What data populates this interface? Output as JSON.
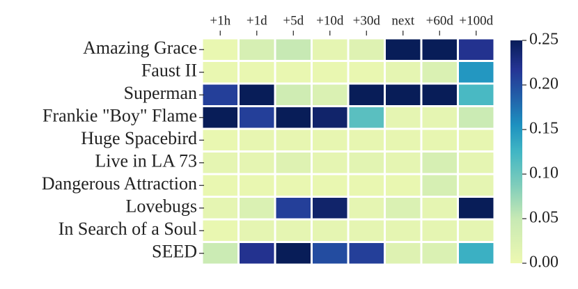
{
  "chart_data": {
    "type": "heatmap",
    "x_categories": [
      "+1h",
      "+1d",
      "+5d",
      "+10d",
      "+30d",
      "next",
      "+60d",
      "+100d"
    ],
    "y_categories": [
      "Amazing Grace",
      "Faust II",
      "Superman",
      "Frankie \"Boy\" Flame",
      "Huge Spacebird",
      "Live in LA 73",
      "Dangerous Attraction",
      "Lovebugs",
      "In Search of a Soul",
      "SEED"
    ],
    "values": [
      [
        0.005,
        0.03,
        0.05,
        0.01,
        0.02,
        0.25,
        0.25,
        0.22
      ],
      [
        0.005,
        0.005,
        0.005,
        0.005,
        0.005,
        0.01,
        0.025,
        0.15
      ],
      [
        0.21,
        0.25,
        0.04,
        0.025,
        0.25,
        0.25,
        0.25,
        0.12
      ],
      [
        0.25,
        0.21,
        0.25,
        0.24,
        0.11,
        0.01,
        0.01,
        0.045
      ],
      [
        0.005,
        0.008,
        0.008,
        0.008,
        0.008,
        0.008,
        0.008,
        0.008
      ],
      [
        0.01,
        0.01,
        0.02,
        0.01,
        0.015,
        0.01,
        0.03,
        0.01
      ],
      [
        0.005,
        0.005,
        0.005,
        0.005,
        0.005,
        0.005,
        0.03,
        0.01
      ],
      [
        0.01,
        0.025,
        0.21,
        0.24,
        0.01,
        0.025,
        0.01,
        0.25
      ],
      [
        0.005,
        0.01,
        0.01,
        0.01,
        0.01,
        0.01,
        0.01,
        0.01
      ],
      [
        0.045,
        0.22,
        0.25,
        0.2,
        0.21,
        0.02,
        0.025,
        0.13
      ]
    ],
    "colormap": "YlGnBu",
    "colorbar_lim": [
      0,
      0.25
    ],
    "colorbar_ticks": [
      {
        "value": 0,
        "label": "0.00"
      },
      0.05,
      {
        "value": 0.1,
        "label": "0.10"
      },
      0.15,
      {
        "value": 0.2,
        "label": "0.20"
      },
      0.25
    ]
  }
}
